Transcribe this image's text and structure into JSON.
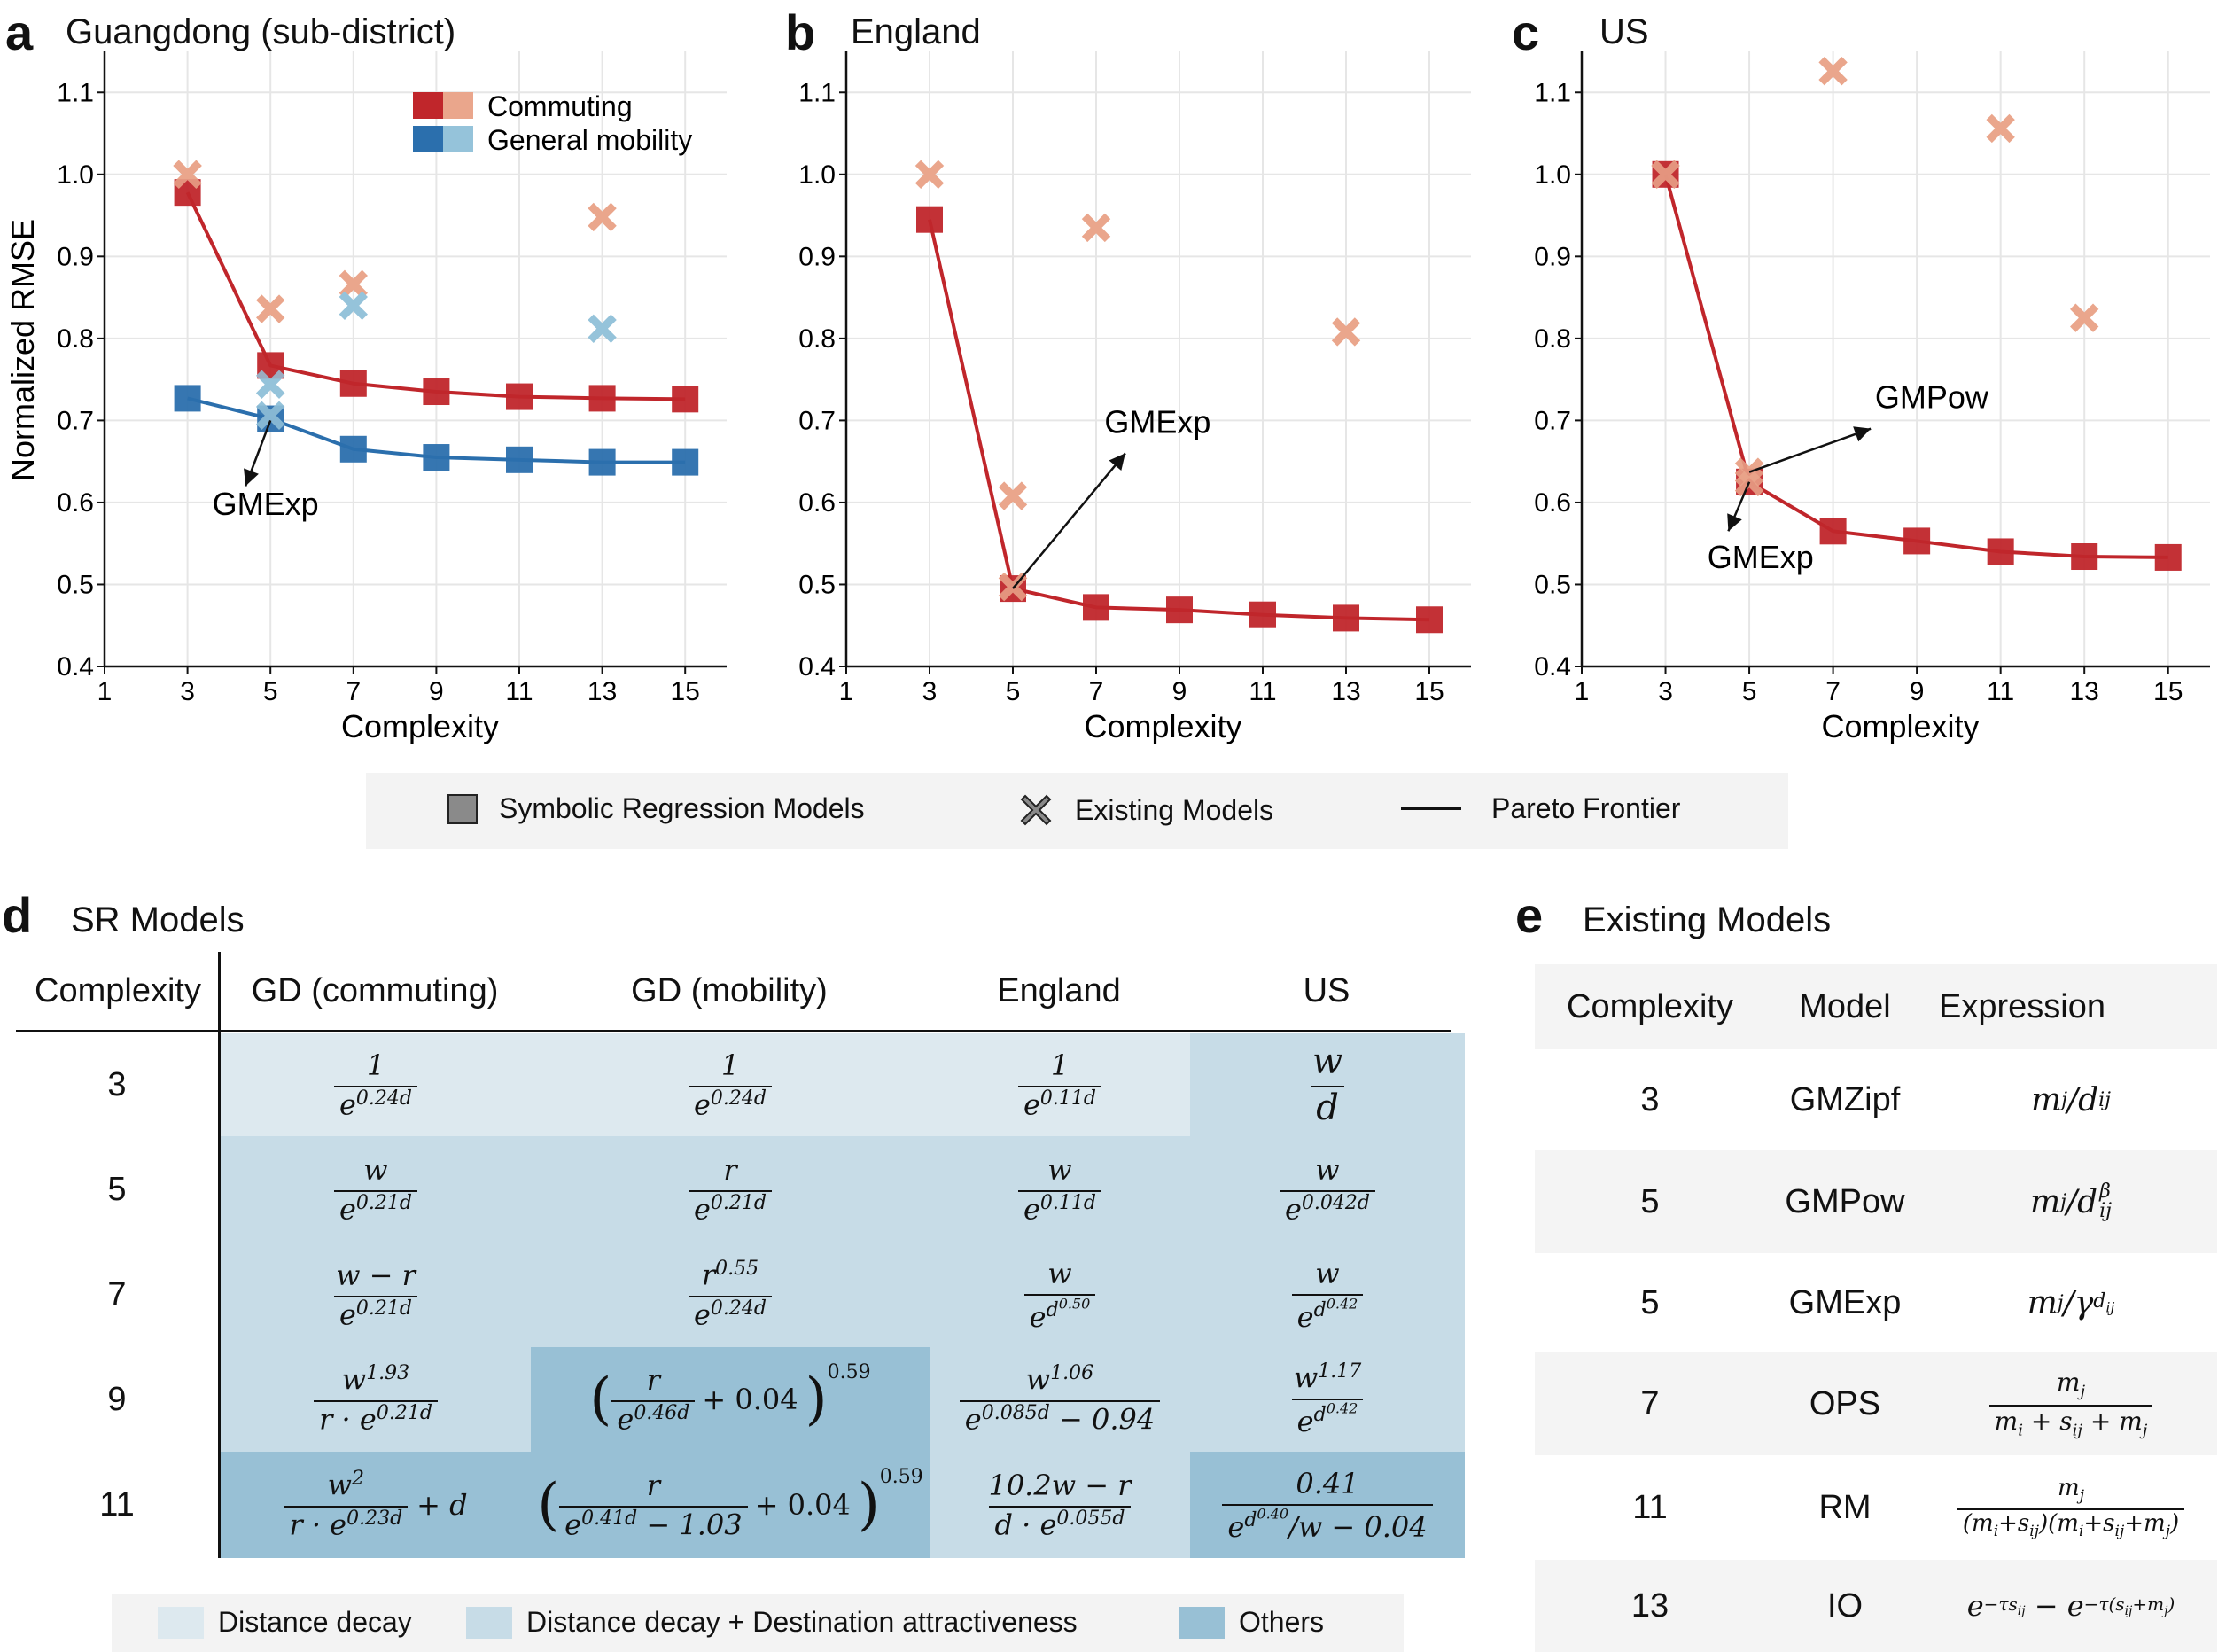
{
  "panels": {
    "a": {
      "letter": "a",
      "title": "Guangdong (sub-district)"
    },
    "b": {
      "letter": "b",
      "title": "England"
    },
    "c": {
      "letter": "c",
      "title": "US"
    },
    "d": {
      "letter": "d",
      "title": "SR Models"
    },
    "e": {
      "letter": "e",
      "title": "Existing Models"
    }
  },
  "chart_data": [
    {
      "type": "scatter",
      "title": "Guangdong (sub-district)",
      "xlabel": "Complexity",
      "ylabel": "Normalized RMSE",
      "xlim": [
        1,
        16
      ],
      "ylim": [
        0.4,
        1.15
      ],
      "xticks": [
        1,
        3,
        5,
        7,
        9,
        11,
        13,
        15
      ],
      "yticks": [
        0.4,
        0.5,
        0.6,
        0.7,
        0.8,
        0.9,
        1.0,
        1.1
      ],
      "grid": true,
      "legend": {
        "placement": "top-right",
        "entries": [
          "Commuting",
          "General mobility"
        ]
      },
      "series": [
        {
          "name": "Commuting",
          "kind": "sr",
          "color": "#c0262b",
          "x": [
            3,
            5,
            7,
            9,
            11,
            13,
            15
          ],
          "y": [
            0.978,
            0.767,
            0.745,
            0.735,
            0.729,
            0.727,
            0.726
          ]
        },
        {
          "name": "General mobility",
          "kind": "sr",
          "color": "#2b6fad",
          "x": [
            3,
            5,
            7,
            9,
            11,
            13,
            15
          ],
          "y": [
            0.727,
            0.702,
            0.665,
            0.655,
            0.652,
            0.649,
            0.649
          ]
        },
        {
          "name": "Commuting",
          "kind": "existing",
          "color": "#eaa68c",
          "x": [
            3,
            5,
            7,
            13
          ],
          "y": [
            1.0,
            0.836,
            0.866,
            0.948
          ]
        },
        {
          "name": "General mobility",
          "kind": "existing",
          "color": "#95c3da",
          "x": [
            5,
            5,
            7,
            13
          ],
          "y": [
            0.744,
            0.706,
            0.84,
            0.812
          ]
        }
      ],
      "annotations": [
        {
          "text": "GMExp",
          "from": [
            5,
            0.7
          ],
          "to": [
            4.4,
            0.62
          ],
          "label_at": [
            3.6,
            0.585
          ]
        }
      ]
    },
    {
      "type": "scatter",
      "title": "England",
      "xlabel": "Complexity",
      "xlim": [
        1,
        16
      ],
      "ylim": [
        0.4,
        1.15
      ],
      "xticks": [
        1,
        3,
        5,
        7,
        9,
        11,
        13,
        15
      ],
      "yticks": [
        0.4,
        0.5,
        0.6,
        0.7,
        0.8,
        0.9,
        1.0,
        1.1
      ],
      "grid": true,
      "series": [
        {
          "kind": "sr",
          "color": "#c0262b",
          "x": [
            3,
            5,
            7,
            9,
            11,
            13,
            15
          ],
          "y": [
            0.945,
            0.495,
            0.472,
            0.469,
            0.463,
            0.459,
            0.457
          ]
        },
        {
          "kind": "existing",
          "color": "#eaa68c",
          "x": [
            3,
            5,
            5,
            7,
            13
          ],
          "y": [
            1.0,
            0.608,
            0.497,
            0.935,
            0.808
          ]
        }
      ],
      "annotations": [
        {
          "text": "GMExp",
          "from": [
            5,
            0.495
          ],
          "to": [
            7.7,
            0.66
          ],
          "label_at": [
            7.2,
            0.685
          ]
        }
      ]
    },
    {
      "type": "scatter",
      "title": "US",
      "xlabel": "Complexity",
      "xlim": [
        1,
        16
      ],
      "ylim": [
        0.4,
        1.15
      ],
      "xticks": [
        1,
        3,
        5,
        7,
        9,
        11,
        13,
        15
      ],
      "yticks": [
        0.4,
        0.5,
        0.6,
        0.7,
        0.8,
        0.9,
        1.0,
        1.1
      ],
      "grid": true,
      "series": [
        {
          "kind": "sr",
          "color": "#c0262b",
          "x": [
            3,
            5,
            7,
            9,
            11,
            13,
            15
          ],
          "y": [
            1.0,
            0.625,
            0.565,
            0.553,
            0.54,
            0.534,
            0.533
          ]
        },
        {
          "kind": "existing",
          "color": "#eaa68c",
          "x": [
            3,
            5,
            5,
            7,
            11,
            13
          ],
          "y": [
            1.0,
            0.637,
            0.625,
            1.126,
            1.056,
            0.825
          ]
        }
      ],
      "annotations": [
        {
          "text": "GMPow",
          "from": [
            5,
            0.637
          ],
          "to": [
            7.9,
            0.69
          ],
          "label_at": [
            8.0,
            0.715
          ]
        },
        {
          "text": "GMExp",
          "from": [
            5,
            0.625
          ],
          "to": [
            4.5,
            0.565
          ],
          "label_at": [
            4.0,
            0.52
          ]
        }
      ]
    }
  ],
  "legend_main": {
    "sr": "Symbolic Regression Models",
    "existing": "Existing Models",
    "pareto": "Pareto Frontier"
  },
  "table_d": {
    "headers": [
      "Complexity",
      "GD (commuting)",
      "GD (mobility)",
      "England",
      "US"
    ],
    "rows": [
      {
        "complexity": "3",
        "cells": [
          {
            "num": "1",
            "den": "e^{0.24d}",
            "cat": "dd"
          },
          {
            "num": "1",
            "den": "e^{0.24d}",
            "cat": "dd"
          },
          {
            "num": "1",
            "den": "e^{0.11d}",
            "cat": "dd"
          },
          {
            "num": "w",
            "den": "d",
            "cat": "dda"
          }
        ]
      },
      {
        "complexity": "5",
        "cells": [
          {
            "num": "w",
            "den": "e^{0.21d}",
            "cat": "dda"
          },
          {
            "num": "r",
            "den": "e^{0.21d}",
            "cat": "dda"
          },
          {
            "num": "w",
            "den": "e^{0.11d}",
            "cat": "dda"
          },
          {
            "num": "w",
            "den": "e^{0.042d}",
            "cat": "dda"
          }
        ]
      },
      {
        "complexity": "7",
        "cells": [
          {
            "num": "w − r",
            "den": "e^{0.21d}",
            "cat": "dda"
          },
          {
            "num": "r^{0.55}",
            "den": "e^{0.24d}",
            "cat": "dda"
          },
          {
            "num": "w",
            "den": "e^{d^{0.50}}",
            "cat": "dda"
          },
          {
            "num": "w",
            "den": "e^{d^{0.42}}",
            "cat": "dda"
          }
        ]
      },
      {
        "complexity": "9",
        "cells": [
          {
            "num": "w^{1.93}",
            "den": "r · e^{0.21d}",
            "cat": "dda"
          },
          {
            "expr": "( r / e^{0.46d} + 0.04 )^{0.59}",
            "cat": "oth"
          },
          {
            "num": "w^{1.06}",
            "den": "e^{0.085d} − 0.94",
            "cat": "dda"
          },
          {
            "num": "w^{1.17}",
            "den": "e^{d^{0.42}}",
            "cat": "dda"
          }
        ]
      },
      {
        "complexity": "11",
        "cells": [
          {
            "expr": "w^2 / (r · e^{0.23d}) + d",
            "cat": "oth"
          },
          {
            "expr": "( r / (e^{0.41d} − 1.03) + 0.04 )^{0.59}",
            "cat": "oth"
          },
          {
            "num": "10.2w − r",
            "den": "d · e^{0.055d}",
            "cat": "dda"
          },
          {
            "num": "0.41",
            "den": "e^{d^{0.40}}/w − 0.04",
            "cat": "oth"
          }
        ]
      }
    ],
    "legend": [
      "Distance decay",
      "Distance decay + Destination attractiveness",
      "Others"
    ],
    "colors": {
      "dd": "#dde9ef",
      "dda": "#c7dce7",
      "oth": "#98c0d5"
    }
  },
  "table_e": {
    "headers": [
      "Complexity",
      "Model",
      "Expression"
    ],
    "rows": [
      {
        "complexity": "3",
        "model": "GMZipf",
        "expression": "m_j / d_ij"
      },
      {
        "complexity": "5",
        "model": "GMPow",
        "expression": "m_j / d_ij^β"
      },
      {
        "complexity": "5",
        "model": "GMExp",
        "expression": "m_j / γ^{d_ij}"
      },
      {
        "complexity": "7",
        "model": "OPS",
        "expression": "m_j / (m_i + s_ij + m_j)"
      },
      {
        "complexity": "11",
        "model": "RM",
        "expression": "m_j / ((m_i + s_ij)(m_i + s_ij + m_j))"
      },
      {
        "complexity": "13",
        "model": "IO",
        "expression": "e^{−τ s_ij} − e^{−τ(s_ij + m_j)}"
      }
    ]
  }
}
